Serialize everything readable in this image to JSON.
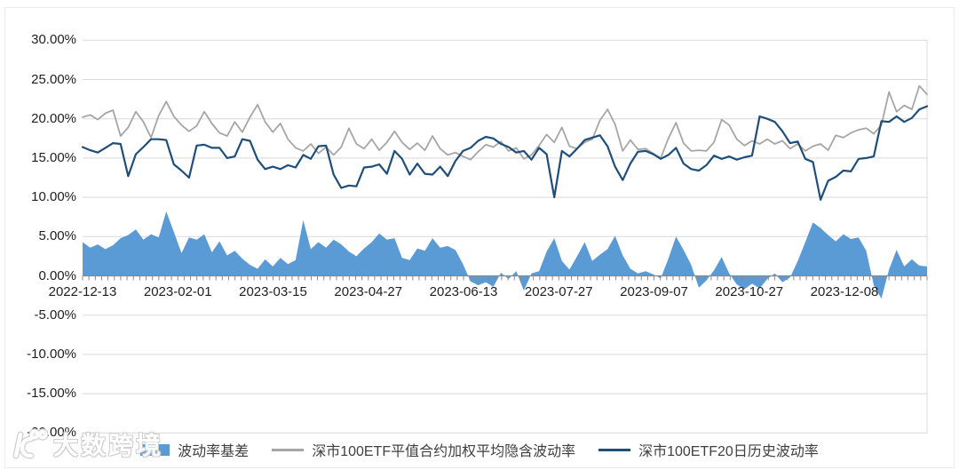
{
  "watermark": {
    "logo": "10100-logo",
    "text": "大数跨境"
  },
  "chart_data": {
    "type": "area+line",
    "title": "",
    "y_axis": {
      "min": -20,
      "max": 30,
      "step": 5,
      "tick_labels": [
        "30.00%",
        "25.00%",
        "20.00%",
        "15.00%",
        "10.00%",
        "5.00%",
        "0.00%",
        "-5.00%",
        "-10.00%",
        "-15.00%",
        "-20.00%"
      ],
      "gridlines": true
    },
    "x_axis": {
      "tick_labels": [
        "2022-12-13",
        "2023-02-01",
        "2023-03-15",
        "2023-04-27",
        "2023-06-13",
        "2023-07-27",
        "2023-09-07",
        "2023-10-27",
        "2023-12-08"
      ],
      "label_interval_trading_days": 30,
      "total_trading_days": 267
    },
    "colors": {
      "area": "#5B9BD5",
      "implied_vol_line": "#A6A6A6",
      "hist_vol_line": "#1F4E79",
      "gridline": "#D9D9D9",
      "axis": "#898989",
      "text": "#1f1f1f"
    },
    "legend": {
      "position": "bottom"
    },
    "series": [
      {
        "name": "波动率基差",
        "type": "area",
        "color": "#5B9BD5",
        "values": [
          4.3,
          3.6,
          4.0,
          3.4,
          3.9,
          4.8,
          5.2,
          5.9,
          4.6,
          5.3,
          4.9,
          8.2,
          5.6,
          2.9,
          4.9,
          4.6,
          5.3,
          3.0,
          4.4,
          2.6,
          3.2,
          2.2,
          1.4,
          0.9,
          2.1,
          1.2,
          2.3,
          1.5,
          2.0,
          7.1,
          3.4,
          4.3,
          3.6,
          4.6,
          4.0,
          3.1,
          2.5,
          3.5,
          4.3,
          5.4,
          4.6,
          4.8,
          2.3,
          2.0,
          3.5,
          3.2,
          4.8,
          3.6,
          3.8,
          3.3,
          1.5,
          -0.7,
          -1.2,
          -0.8,
          -1.4,
          0.4,
          -0.4,
          0.6,
          -1.9,
          0.3,
          0.6,
          3.1,
          4.8,
          1.9,
          0.8,
          2.5,
          4.3,
          1.9,
          2.7,
          3.4,
          5.1,
          2.6,
          0.9,
          0.3,
          0.6,
          0.2,
          -0.3,
          2.2,
          5.0,
          3.3,
          1.4,
          -1.5,
          -0.6,
          0.7,
          2.4,
          0.3,
          -1.1,
          -1.7,
          -1.0,
          -1.6,
          -0.4,
          0.3,
          -0.8,
          -0.2,
          1.9,
          4.3,
          6.8,
          6.1,
          5.2,
          4.4,
          5.3,
          4.7,
          4.9,
          3.2,
          -1.2,
          -2.9,
          0.8,
          3.3,
          1.2,
          2.1,
          1.3,
          1.2
        ]
      },
      {
        "name": "深市100ETF平值合约加权平均隐含波动率",
        "type": "line",
        "color": "#A6A6A6",
        "values": [
          20.2,
          20.5,
          19.9,
          20.7,
          21.1,
          17.8,
          18.9,
          20.9,
          19.6,
          17.6,
          20.4,
          22.2,
          20.3,
          19.2,
          18.4,
          19.1,
          20.9,
          19.4,
          18.2,
          17.8,
          19.6,
          18.3,
          20.2,
          21.8,
          19.6,
          18.3,
          19.4,
          17.4,
          16.3,
          15.9,
          16.8,
          15.6,
          16.4,
          15.4,
          16.4,
          18.8,
          16.8,
          16.2,
          17.4,
          16.0,
          17.0,
          18.4,
          17.0,
          16.1,
          16.9,
          16.0,
          17.8,
          16.2,
          15.4,
          15.7,
          15.2,
          14.8,
          15.8,
          16.7,
          16.4,
          17.1,
          15.9,
          16.3,
          14.9,
          15.4,
          16.6,
          18.0,
          17.0,
          18.9,
          16.5,
          16.2,
          17.0,
          17.4,
          19.8,
          21.2,
          19.3,
          15.9,
          17.3,
          16.1,
          16.2,
          15.6,
          15.0,
          17.5,
          19.5,
          16.9,
          15.9,
          16.0,
          15.9,
          17.0,
          19.9,
          19.2,
          17.4,
          16.6,
          17.2,
          16.8,
          17.4,
          16.8,
          17.2,
          16.2,
          16.8,
          15.9,
          16.5,
          16.8,
          16.0,
          17.9,
          17.6,
          18.2,
          18.6,
          18.8,
          18.1,
          19.2,
          23.4,
          20.9,
          21.7,
          21.2,
          24.2,
          23.1
        ]
      },
      {
        "name": "深市100ETF20日历史波动率",
        "type": "line",
        "color": "#1F4E79",
        "values": [
          16.4,
          16.0,
          15.7,
          16.3,
          16.9,
          16.8,
          12.7,
          15.5,
          16.4,
          17.4,
          17.4,
          17.3,
          14.2,
          13.4,
          12.5,
          16.6,
          16.7,
          16.3,
          16.3,
          15.0,
          15.2,
          17.4,
          17.2,
          14.8,
          13.6,
          13.9,
          13.6,
          14.1,
          13.8,
          15.4,
          14.9,
          16.5,
          16.6,
          12.9,
          11.2,
          11.5,
          11.4,
          13.8,
          13.9,
          14.2,
          13.0,
          15.9,
          14.9,
          12.9,
          14.3,
          13.0,
          12.9,
          13.9,
          12.7,
          14.6,
          15.9,
          16.3,
          17.2,
          17.7,
          17.5,
          16.8,
          16.4,
          15.7,
          15.9,
          14.8,
          16.3,
          15.5,
          10.0,
          15.9,
          15.2,
          16.2,
          17.3,
          17.6,
          17.9,
          16.5,
          13.9,
          12.2,
          14.3,
          15.8,
          15.9,
          15.5,
          14.9,
          15.4,
          16.3,
          14.3,
          13.6,
          13.4,
          14.1,
          15.3,
          14.9,
          15.2,
          14.8,
          15.1,
          15.3,
          20.3,
          20.0,
          19.6,
          18.4,
          16.9,
          17.1,
          14.9,
          14.5,
          9.7,
          12.1,
          12.6,
          13.4,
          13.3,
          14.9,
          15.0,
          15.2,
          19.7,
          19.6,
          20.3,
          19.6,
          20.1,
          21.2,
          21.6
        ]
      }
    ]
  }
}
